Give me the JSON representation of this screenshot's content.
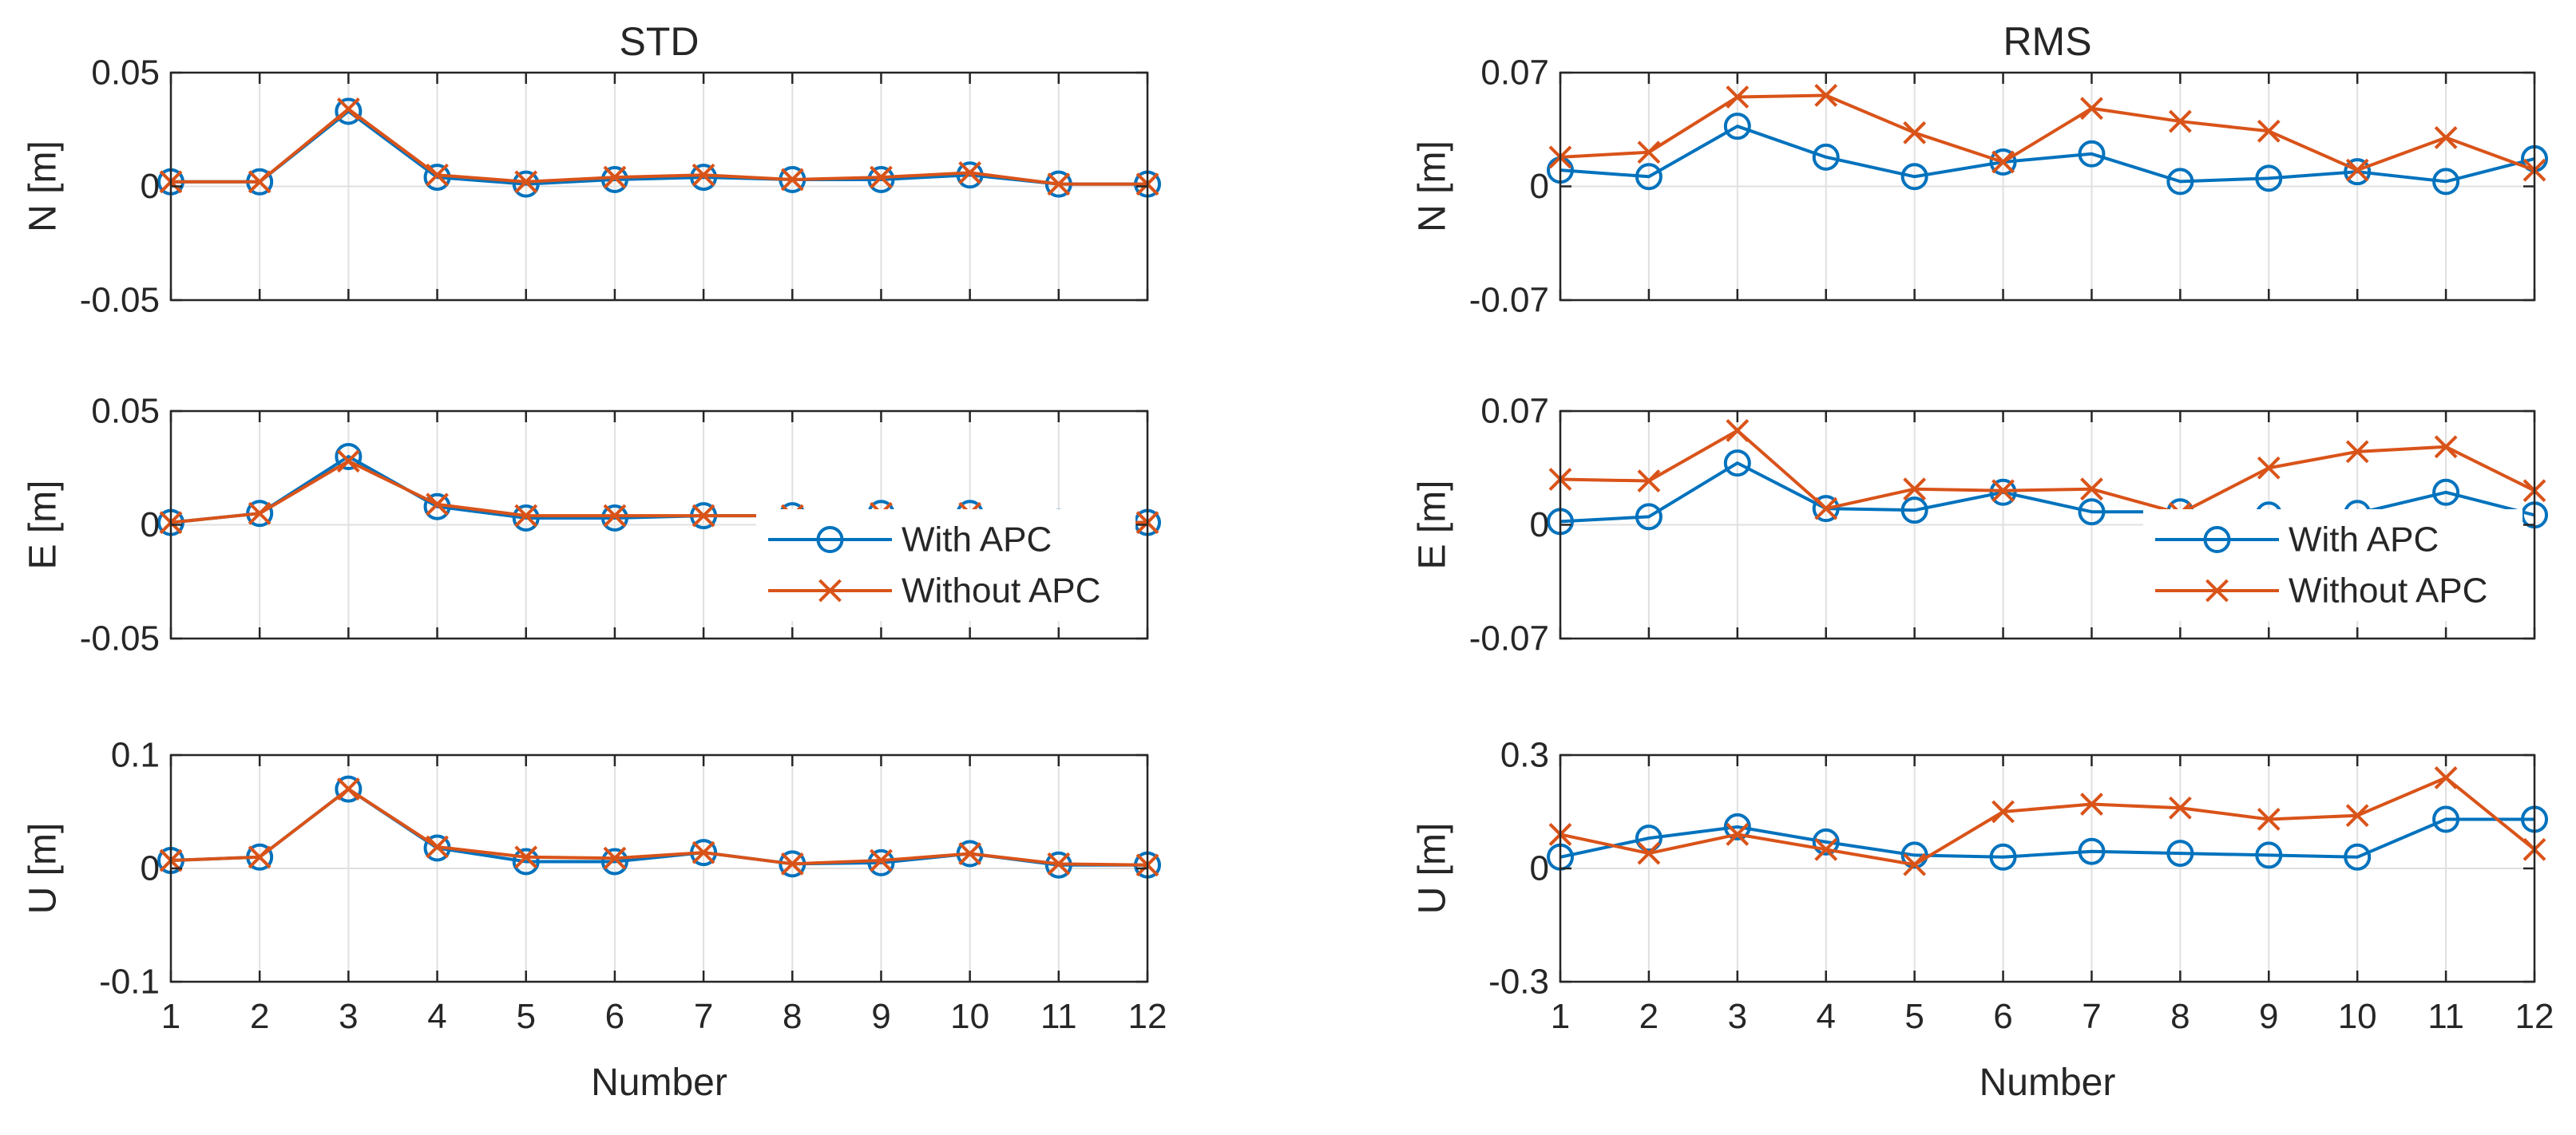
{
  "chart_data": {
    "type": "line",
    "x": [
      1,
      2,
      3,
      4,
      5,
      6,
      7,
      8,
      9,
      10,
      11,
      12
    ],
    "xticks": [
      "1",
      "2",
      "3",
      "4",
      "5",
      "6",
      "7",
      "8",
      "9",
      "10",
      "11",
      "12"
    ],
    "xlabel": "Number",
    "xlim": [
      1,
      12
    ],
    "grid": true,
    "legend_entries": [
      "With APC",
      "Without APC"
    ],
    "series_colors": {
      "With APC": "#0072BD",
      "Without APC": "#D95319"
    },
    "panels": [
      {
        "id": "std-n",
        "title": "STD",
        "ylabel": "N [m]",
        "ylim": [
          -0.05,
          0.05
        ],
        "yticks": [
          "-0.05",
          "0",
          "0.05"
        ],
        "series": [
          {
            "name": "With APC",
            "marker": "circle",
            "values": [
              0.002,
              0.002,
              0.033,
              0.004,
              0.001,
              0.003,
              0.004,
              0.003,
              0.003,
              0.005,
              0.001,
              0.001
            ]
          },
          {
            "name": "Without APC",
            "marker": "x",
            "values": [
              0.002,
              0.002,
              0.034,
              0.005,
              0.002,
              0.004,
              0.005,
              0.003,
              0.004,
              0.006,
              0.001,
              0.001
            ]
          }
        ]
      },
      {
        "id": "rms-n",
        "title": "RMS",
        "ylabel": "N [m]",
        "ylim": [
          -0.07,
          0.07
        ],
        "yticks": [
          "-0.07",
          "0",
          "0.07"
        ],
        "series": [
          {
            "name": "With APC",
            "marker": "circle",
            "values": [
              0.01,
              0.006,
              0.037,
              0.018,
              0.006,
              0.015,
              0.02,
              0.003,
              0.005,
              0.009,
              0.003,
              0.017
            ]
          },
          {
            "name": "Without APC",
            "marker": "x",
            "values": [
              0.018,
              0.021,
              0.055,
              0.056,
              0.033,
              0.015,
              0.048,
              0.04,
              0.034,
              0.01,
              0.03,
              0.01
            ]
          }
        ]
      },
      {
        "id": "std-e",
        "title": "",
        "ylabel": "E [m]",
        "ylim": [
          -0.05,
          0.05
        ],
        "yticks": [
          "-0.05",
          "0",
          "0.05"
        ],
        "legend": "bottom-right",
        "series": [
          {
            "name": "With APC",
            "marker": "circle",
            "values": [
              0.001,
              0.005,
              0.03,
              0.008,
              0.003,
              0.003,
              0.004,
              0.004,
              0.005,
              0.005,
              0.001,
              0.001
            ]
          },
          {
            "name": "Without APC",
            "marker": "x",
            "values": [
              0.001,
              0.005,
              0.028,
              0.009,
              0.004,
              0.004,
              0.004,
              0.004,
              0.005,
              0.005,
              0.001,
              0.001
            ]
          }
        ]
      },
      {
        "id": "rms-e",
        "title": "",
        "ylabel": "E [m]",
        "ylim": [
          -0.07,
          0.07
        ],
        "yticks": [
          "-0.07",
          "0",
          "0.07"
        ],
        "legend": "bottom-right",
        "series": [
          {
            "name": "With APC",
            "marker": "circle",
            "values": [
              0.002,
              0.005,
              0.038,
              0.01,
              0.009,
              0.02,
              0.008,
              0.008,
              0.006,
              0.007,
              0.02,
              0.006
            ]
          },
          {
            "name": "Without APC",
            "marker": "x",
            "values": [
              0.028,
              0.027,
              0.058,
              0.01,
              0.022,
              0.021,
              0.022,
              0.007,
              0.035,
              0.045,
              0.048,
              0.021
            ]
          }
        ]
      },
      {
        "id": "std-u",
        "title": "",
        "ylabel": "U [m]",
        "ylim": [
          -0.1,
          0.1
        ],
        "yticks": [
          "-0.1",
          "0",
          "0.1"
        ],
        "series": [
          {
            "name": "With APC",
            "marker": "circle",
            "values": [
              0.007,
              0.01,
              0.07,
              0.018,
              0.006,
              0.006,
              0.014,
              0.004,
              0.005,
              0.013,
              0.003,
              0.003
            ]
          },
          {
            "name": "Without APC",
            "marker": "x",
            "values": [
              0.007,
              0.01,
              0.07,
              0.019,
              0.01,
              0.009,
              0.014,
              0.004,
              0.007,
              0.013,
              0.004,
              0.003
            ]
          }
        ]
      },
      {
        "id": "rms-u",
        "title": "",
        "ylabel": "U [m]",
        "ylim": [
          -0.3,
          0.3
        ],
        "yticks": [
          "-0.3",
          "0",
          "0.3"
        ],
        "series": [
          {
            "name": "With APC",
            "marker": "circle",
            "values": [
              0.03,
              0.08,
              0.11,
              0.07,
              0.035,
              0.03,
              0.045,
              0.04,
              0.035,
              0.03,
              0.13,
              0.13
            ]
          },
          {
            "name": "Without APC",
            "marker": "x",
            "values": [
              0.09,
              0.04,
              0.09,
              0.05,
              0.01,
              0.15,
              0.17,
              0.16,
              0.13,
              0.14,
              0.24,
              0.05
            ]
          }
        ]
      }
    ]
  }
}
